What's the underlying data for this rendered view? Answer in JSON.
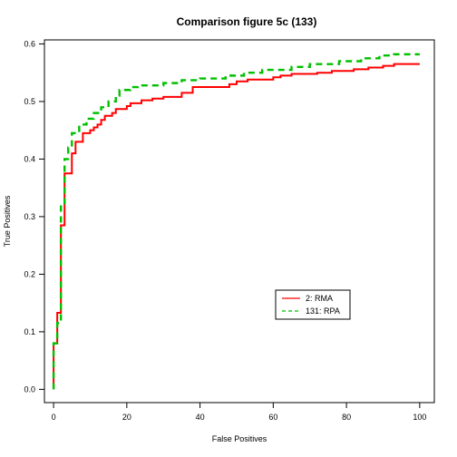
{
  "chart_data": {
    "type": "line",
    "title": "Comparison figure 5c (133)",
    "xlabel": "False Positives",
    "ylabel": "True Positives",
    "xlim": [
      -2.5,
      104
    ],
    "ylim": [
      -0.023,
      0.607
    ],
    "xticks": [
      0,
      20,
      40,
      60,
      80,
      100
    ],
    "yticks": [
      0.0,
      0.1,
      0.2,
      0.3,
      0.4,
      0.5,
      0.6
    ],
    "xtick_labels": [
      "0",
      "20",
      "40",
      "60",
      "80",
      "100"
    ],
    "ytick_labels": [
      "0.0",
      "0.1",
      "0.2",
      "0.3",
      "0.4",
      "0.5",
      "0.6"
    ],
    "grid": false,
    "legend_position": "lower-right",
    "series": [
      {
        "name": "2: RMA",
        "color": "#ff0000",
        "dash": "solid",
        "points": [
          [
            0,
            0.0
          ],
          [
            0,
            0.08
          ],
          [
            1,
            0.08
          ],
          [
            1,
            0.133
          ],
          [
            2,
            0.133
          ],
          [
            2,
            0.285
          ],
          [
            3,
            0.285
          ],
          [
            3,
            0.375
          ],
          [
            5,
            0.375
          ],
          [
            5,
            0.41
          ],
          [
            6,
            0.41
          ],
          [
            6,
            0.43
          ],
          [
            8,
            0.43
          ],
          [
            8,
            0.445
          ],
          [
            10,
            0.445
          ],
          [
            10,
            0.45
          ],
          [
            11,
            0.45
          ],
          [
            11,
            0.455
          ],
          [
            12,
            0.455
          ],
          [
            12,
            0.46
          ],
          [
            13,
            0.46
          ],
          [
            13,
            0.468
          ],
          [
            14,
            0.468
          ],
          [
            14,
            0.475
          ],
          [
            16,
            0.475
          ],
          [
            16,
            0.48
          ],
          [
            17,
            0.48
          ],
          [
            17,
            0.487
          ],
          [
            20,
            0.487
          ],
          [
            20,
            0.492
          ],
          [
            21,
            0.492
          ],
          [
            21,
            0.497
          ],
          [
            24,
            0.497
          ],
          [
            24,
            0.502
          ],
          [
            27,
            0.502
          ],
          [
            27,
            0.505
          ],
          [
            30,
            0.505
          ],
          [
            30,
            0.508
          ],
          [
            35,
            0.508
          ],
          [
            35,
            0.515
          ],
          [
            38,
            0.515
          ],
          [
            38,
            0.525
          ],
          [
            48,
            0.525
          ],
          [
            48,
            0.53
          ],
          [
            50,
            0.53
          ],
          [
            50,
            0.535
          ],
          [
            53,
            0.535
          ],
          [
            53,
            0.538
          ],
          [
            60,
            0.538
          ],
          [
            60,
            0.542
          ],
          [
            62,
            0.542
          ],
          [
            62,
            0.545
          ],
          [
            65,
            0.545
          ],
          [
            65,
            0.548
          ],
          [
            72,
            0.548
          ],
          [
            72,
            0.55
          ],
          [
            76,
            0.55
          ],
          [
            76,
            0.553
          ],
          [
            82,
            0.553
          ],
          [
            82,
            0.556
          ],
          [
            86,
            0.556
          ],
          [
            86,
            0.559
          ],
          [
            90,
            0.559
          ],
          [
            90,
            0.562
          ],
          [
            93,
            0.562
          ],
          [
            93,
            0.565
          ],
          [
            100,
            0.565
          ]
        ]
      },
      {
        "name": "131: RPA",
        "color": "#00c000",
        "dash": "dashed",
        "points": [
          [
            0,
            0.0
          ],
          [
            0,
            0.08
          ],
          [
            1,
            0.08
          ],
          [
            1,
            0.115
          ],
          [
            2,
            0.115
          ],
          [
            2,
            0.32
          ],
          [
            3,
            0.32
          ],
          [
            3,
            0.4
          ],
          [
            4,
            0.4
          ],
          [
            4,
            0.42
          ],
          [
            5,
            0.42
          ],
          [
            5,
            0.445
          ],
          [
            7,
            0.445
          ],
          [
            7,
            0.46
          ],
          [
            9,
            0.46
          ],
          [
            9,
            0.47
          ],
          [
            11,
            0.47
          ],
          [
            11,
            0.48
          ],
          [
            13,
            0.48
          ],
          [
            13,
            0.49
          ],
          [
            15,
            0.49
          ],
          [
            15,
            0.5
          ],
          [
            17,
            0.5
          ],
          [
            17,
            0.51
          ],
          [
            18,
            0.51
          ],
          [
            18,
            0.52
          ],
          [
            21,
            0.52
          ],
          [
            21,
            0.525
          ],
          [
            23,
            0.525
          ],
          [
            23,
            0.528
          ],
          [
            30,
            0.528
          ],
          [
            30,
            0.532
          ],
          [
            35,
            0.532
          ],
          [
            35,
            0.537
          ],
          [
            40,
            0.537
          ],
          [
            40,
            0.54
          ],
          [
            47,
            0.54
          ],
          [
            47,
            0.545
          ],
          [
            52,
            0.545
          ],
          [
            52,
            0.55
          ],
          [
            57,
            0.55
          ],
          [
            57,
            0.555
          ],
          [
            65,
            0.555
          ],
          [
            65,
            0.56
          ],
          [
            70,
            0.56
          ],
          [
            70,
            0.565
          ],
          [
            78,
            0.565
          ],
          [
            78,
            0.57
          ],
          [
            84,
            0.57
          ],
          [
            84,
            0.575
          ],
          [
            89,
            0.575
          ],
          [
            89,
            0.58
          ],
          [
            93,
            0.58
          ],
          [
            93,
            0.582
          ],
          [
            100,
            0.582
          ]
        ]
      }
    ]
  }
}
